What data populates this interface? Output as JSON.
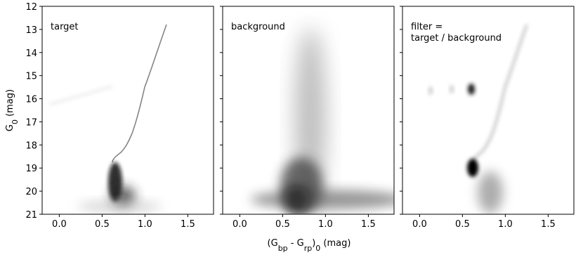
{
  "x_label": [
    "(G",
    "bp",
    " - G",
    "rp",
    ")",
    "0",
    " (mag)"
  ],
  "y_label": [
    "G",
    "0",
    " (mag)"
  ],
  "chart_data": [
    {
      "type": "image",
      "title": [
        "target"
      ],
      "xlim": [
        -0.2,
        1.8
      ],
      "xticks": [
        {
          "value": 0,
          "label": "0.0"
        },
        {
          "value": 0.5,
          "label": "0.5"
        },
        {
          "value": 1,
          "label": "1.0"
        },
        {
          "value": 1.5,
          "label": "1.5"
        }
      ],
      "ylim": [
        21,
        12
      ],
      "yticks": [
        12,
        13,
        14,
        15,
        16,
        17,
        18,
        19,
        20,
        21
      ]
    },
    {
      "type": "image",
      "title": [
        "background"
      ],
      "sharey": true,
      "xlim": [
        -0.2,
        1.8
      ],
      "xticks": [
        {
          "value": 0,
          "label": "0.0"
        },
        {
          "value": 0.5,
          "label": "0.5"
        },
        {
          "value": 1,
          "label": "1.0"
        },
        {
          "value": 1.5,
          "label": "1.5"
        }
      ],
      "ylim": [
        21,
        12
      ],
      "yticks": [
        12,
        13,
        14,
        15,
        16,
        17,
        18,
        19,
        20,
        21
      ]
    },
    {
      "type": "image",
      "title": [
        "filter =",
        "target / background"
      ],
      "sharey": true,
      "xlim": [
        -0.2,
        1.8
      ],
      "xticks": [
        {
          "value": 0,
          "label": "0.0"
        },
        {
          "value": 0.5,
          "label": "0.5"
        },
        {
          "value": 1,
          "label": "1.0"
        },
        {
          "value": 1.5,
          "label": "1.5"
        }
      ],
      "ylim": [
        21,
        12
      ],
      "yticks": [
        12,
        13,
        14,
        15,
        16,
        17,
        18,
        19,
        20,
        21
      ]
    }
  ]
}
